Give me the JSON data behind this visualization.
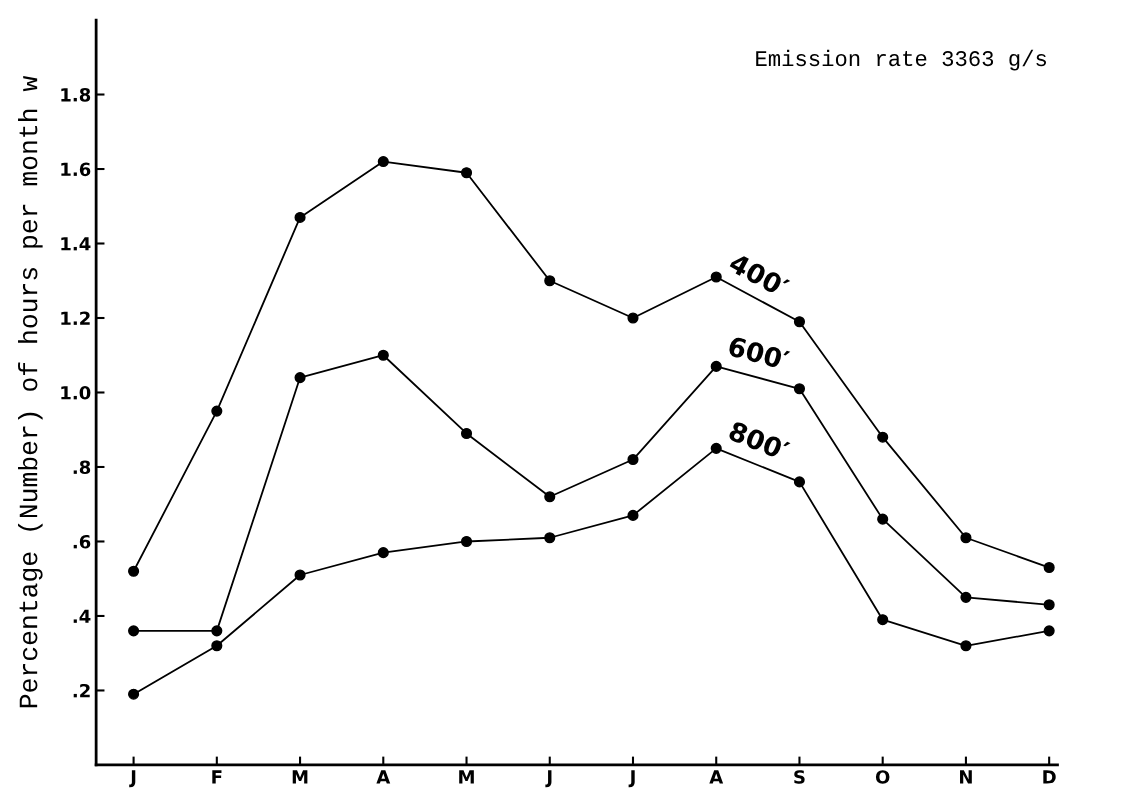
{
  "chart_data": {
    "type": "line",
    "ylabel": "Percentage (Number) of hours per month w",
    "annotations": [
      "Emission rate 3363 g/s"
    ],
    "categories": [
      "J",
      "F",
      "M",
      "A",
      "M",
      "J",
      "J",
      "A",
      "S",
      "O",
      "N",
      "D"
    ],
    "series": [
      {
        "name": "400′",
        "color": "#000000",
        "values": [
          0.52,
          0.95,
          1.47,
          1.62,
          1.59,
          1.3,
          1.2,
          1.31,
          1.19,
          0.88,
          0.61,
          0.53
        ]
      },
      {
        "name": "600′",
        "color": "#000000",
        "values": [
          0.36,
          0.36,
          1.04,
          1.1,
          0.89,
          0.72,
          0.82,
          1.07,
          1.01,
          0.66,
          0.45,
          0.43
        ]
      },
      {
        "name": "800′",
        "color": "#000000",
        "values": [
          0.19,
          0.32,
          0.51,
          0.57,
          0.6,
          0.61,
          0.67,
          0.85,
          0.76,
          0.39,
          0.32,
          0.36
        ]
      }
    ],
    "ylim": [
      0,
      2.0
    ],
    "yticks": [
      {
        "value": 0.2,
        "label": ".2"
      },
      {
        "value": 0.4,
        "label": ".4"
      },
      {
        "value": 0.6,
        "label": ".6"
      },
      {
        "value": 0.8,
        "label": ".8"
      },
      {
        "value": 1.0,
        "label": "1.0"
      },
      {
        "value": 1.2,
        "label": "1.2"
      },
      {
        "value": 1.4,
        "label": "1.4"
      },
      {
        "value": 1.6,
        "label": "1.6"
      },
      {
        "value": 1.8,
        "label": "1.8"
      }
    ],
    "marker": "circle",
    "line_style": "solid",
    "grid": false,
    "legend": false
  }
}
